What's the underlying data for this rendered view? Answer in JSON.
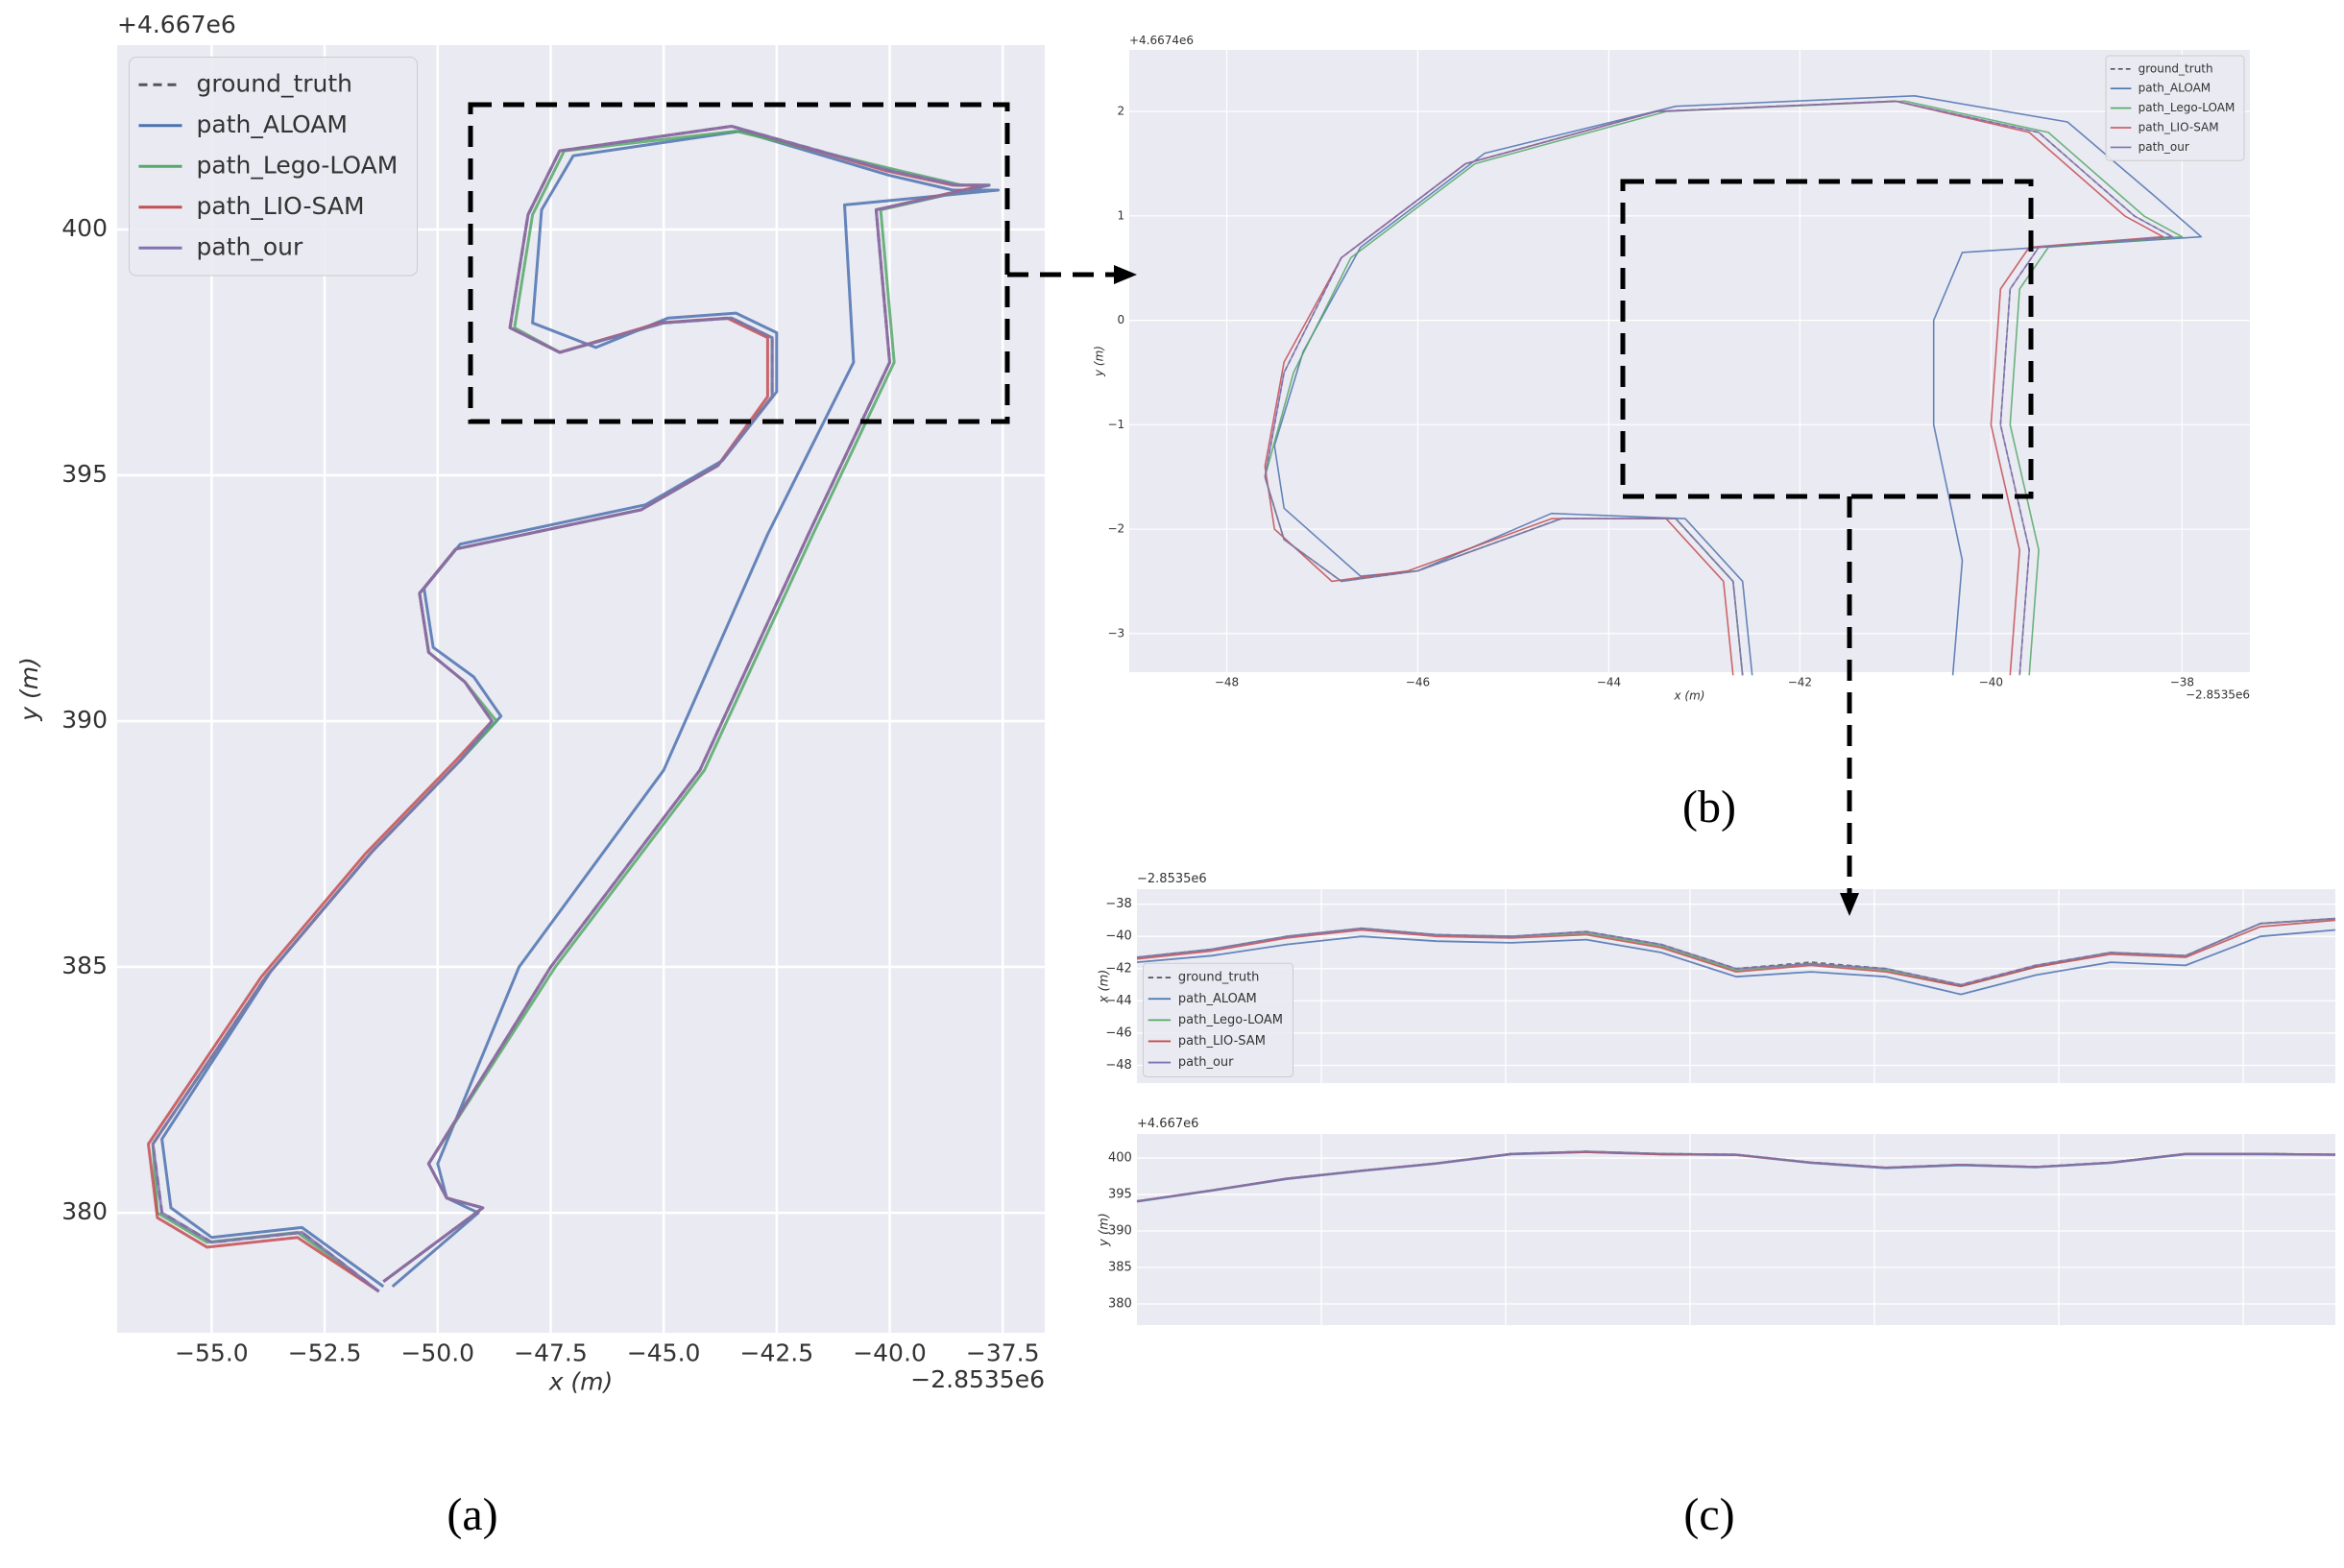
{
  "panel_labels": [
    "(a)",
    "(b)",
    "(c)"
  ],
  "chart_data": [
    {
      "type": "line",
      "xlabel": "x (m)",
      "ylabel": "y (m)",
      "x_offset": "−2.8535e6",
      "y_offset": "+4.667e6",
      "xlim": [
        -57.09,
        -36.57
      ],
      "ylim": [
        377.56,
        403.75
      ],
      "xticks": [
        {
          "value": -55,
          "label": "−55.0"
        },
        {
          "value": -52.5,
          "label": "−52.5"
        },
        {
          "value": -50,
          "label": "−50.0"
        },
        {
          "value": -47.5,
          "label": "−47.5"
        },
        {
          "value": -45,
          "label": "−45.0"
        },
        {
          "value": -42.5,
          "label": "−42.5"
        },
        {
          "value": -40,
          "label": "−40.0"
        },
        {
          "value": -37.5,
          "label": "−37.5"
        }
      ],
      "yticks": [
        380,
        385,
        390,
        395,
        400
      ],
      "grid": true,
      "legend": "upper left",
      "series": [
        {
          "name": "ground_truth",
          "color": "#555555",
          "dashed": true,
          "x": [
            -51.3,
            -53,
            -55,
            -56.1,
            -56.3,
            -53.8,
            -51.5,
            -49.5,
            -48.8,
            -49.4,
            -50.2,
            -50.4,
            -49.6,
            -45.5,
            -43.8,
            -42.6,
            -42.6,
            -43.5,
            -45.0,
            -47.3,
            -48.4,
            -48.0,
            -47.3,
            -43.5,
            -40.0,
            -38.5,
            -37.8,
            -40.3,
            -40.0,
            -41.8,
            -44.2,
            -47.5,
            -50.2,
            -49.8,
            -49.0,
            -51.2
          ],
          "values": [
            378.4,
            379.6,
            379.4,
            380.0,
            381.4,
            384.8,
            387.3,
            389.2,
            390.0,
            390.8,
            391.4,
            392.6,
            393.5,
            394.3,
            395.2,
            396.6,
            397.8,
            398.2,
            398.1,
            397.5,
            398.0,
            400.3,
            401.6,
            402.1,
            401.2,
            400.9,
            400.9,
            400.4,
            397.3,
            393.8,
            389.0,
            385.0,
            381.0,
            380.3,
            380.1,
            378.6
          ]
        },
        {
          "name": "path_ALOAM",
          "color": "#4c72b0",
          "x": [
            -51.2,
            -53,
            -55,
            -55.9,
            -56.1,
            -53.7,
            -51.4,
            -49.4,
            -48.6,
            -49.2,
            -50.1,
            -50.3,
            -49.5,
            -45.4,
            -43.7,
            -42.5,
            -42.5,
            -43.4,
            -44.9,
            -46.5,
            -47.9,
            -47.7,
            -47.0,
            -43.3,
            -40.0,
            -38.6,
            -37.6,
            -41.0,
            -40.8,
            -42.7,
            -45.0,
            -48.2,
            -50.0,
            -49.8,
            -49.1,
            -51.0
          ],
          "values": [
            378.5,
            379.7,
            379.5,
            380.1,
            381.5,
            384.9,
            387.4,
            389.3,
            390.1,
            390.9,
            391.5,
            392.7,
            393.6,
            394.4,
            395.3,
            396.7,
            397.9,
            398.3,
            398.2,
            397.6,
            398.1,
            400.4,
            401.5,
            402.0,
            401.1,
            400.8,
            400.8,
            400.5,
            397.3,
            393.8,
            389.0,
            385.0,
            381.0,
            380.3,
            380.0,
            378.5
          ]
        },
        {
          "name": "path_Lego-LOAM",
          "color": "#55a868",
          "x": [
            -51.3,
            -53.1,
            -55.1,
            -56.2,
            -56.3,
            -53.8,
            -51.5,
            -49.5,
            -48.7,
            -49.4,
            -50.2,
            -50.4,
            -49.6,
            -45.5,
            -43.8,
            -42.6,
            -42.6,
            -43.5,
            -45.0,
            -47.3,
            -48.3,
            -47.9,
            -47.2,
            -43.4,
            -39.8,
            -38.4,
            -37.8,
            -40.2,
            -39.9,
            -41.7,
            -44.1,
            -47.4,
            -50.2,
            -49.8,
            -49.0,
            -51.2
          ],
          "values": [
            378.4,
            379.6,
            379.4,
            380.0,
            381.4,
            384.8,
            387.3,
            389.2,
            390.0,
            390.8,
            391.4,
            392.6,
            393.5,
            394.3,
            395.2,
            396.6,
            397.8,
            398.2,
            398.1,
            397.5,
            398.0,
            400.3,
            401.6,
            402.0,
            401.2,
            400.9,
            400.9,
            400.4,
            397.3,
            393.8,
            389.0,
            385.0,
            381.0,
            380.3,
            380.1,
            378.6
          ]
        },
        {
          "name": "path_LIO-SAM",
          "color": "#c44e52",
          "x": [
            -51.3,
            -53.1,
            -55.1,
            -56.2,
            -56.4,
            -53.9,
            -51.6,
            -49.6,
            -48.8,
            -49.4,
            -50.2,
            -50.4,
            -49.6,
            -45.5,
            -43.8,
            -42.7,
            -42.7,
            -43.6,
            -45.1,
            -47.3,
            -48.4,
            -48.0,
            -47.3,
            -43.5,
            -40.1,
            -38.6,
            -37.9,
            -40.3,
            -40.0,
            -41.8,
            -44.2,
            -47.5,
            -50.2,
            -49.8,
            -49.0,
            -51.2
          ],
          "values": [
            378.4,
            379.5,
            379.3,
            379.9,
            381.4,
            384.8,
            387.3,
            389.2,
            390.0,
            390.8,
            391.4,
            392.6,
            393.5,
            394.3,
            395.2,
            396.6,
            397.8,
            398.2,
            398.1,
            397.5,
            398.0,
            400.3,
            401.6,
            402.1,
            401.2,
            400.9,
            400.9,
            400.4,
            397.3,
            393.8,
            389.0,
            385.0,
            381.0,
            380.3,
            380.1,
            378.6
          ]
        },
        {
          "name": "path_our",
          "color": "#8172b2",
          "x": [
            -51.3,
            -53,
            -55,
            -56.1,
            -56.3,
            -53.8,
            -51.5,
            -49.5,
            -48.8,
            -49.4,
            -50.2,
            -50.4,
            -49.6,
            -45.5,
            -43.8,
            -42.6,
            -42.6,
            -43.5,
            -45.0,
            -47.3,
            -48.4,
            -48.0,
            -47.3,
            -43.5,
            -40.0,
            -38.5,
            -37.8,
            -40.3,
            -40.0,
            -41.8,
            -44.2,
            -47.5,
            -50.2,
            -49.8,
            -49.0,
            -51.2
          ],
          "values": [
            378.4,
            379.6,
            379.4,
            380.0,
            381.4,
            384.8,
            387.3,
            389.2,
            390.0,
            390.8,
            391.4,
            392.6,
            393.5,
            394.3,
            395.2,
            396.6,
            397.8,
            398.2,
            398.1,
            397.5,
            398.0,
            400.3,
            401.6,
            402.1,
            401.2,
            400.9,
            400.9,
            400.4,
            397.3,
            393.8,
            389.0,
            385.0,
            381.0,
            380.3,
            380.1,
            378.6
          ]
        }
      ]
    },
    {
      "type": "line",
      "xlabel": "x (m)",
      "ylabel": "y (m)",
      "x_offset": "−2.8535e6",
      "y_offset": "+4.6674e6",
      "xlim": [
        -49.02,
        -37.29
      ],
      "ylim": [
        -3.37,
        2.59
      ],
      "xticks": [
        {
          "value": -48,
          "label": "−48"
        },
        {
          "value": -46,
          "label": "−46"
        },
        {
          "value": -44,
          "label": "−44"
        },
        {
          "value": -42,
          "label": "−42"
        },
        {
          "value": -40,
          "label": "−40"
        },
        {
          "value": -38,
          "label": "−38"
        }
      ],
      "yticks": [
        {
          "value": -3,
          "label": "−3"
        },
        {
          "value": -2,
          "label": "−2"
        },
        {
          "value": -1,
          "label": "−1"
        },
        0,
        1,
        2
      ],
      "grid": true,
      "legend": "upper right",
      "series": [
        {
          "name": "ground_truth",
          "color": "#555555",
          "dashed": true,
          "x": [
            -42.6,
            -42.7,
            -43.3,
            -44.5,
            -46.0,
            -46.8,
            -47.4,
            -47.6,
            -47.4,
            -46.8,
            -45.5,
            -43.5,
            -41.0,
            -39.5,
            -38.5,
            -38.1,
            -39.5,
            -39.8,
            -39.9,
            -39.6,
            -39.7
          ],
          "values": [
            -3.4,
            -2.5,
            -1.9,
            -1.9,
            -2.4,
            -2.5,
            -2.1,
            -1.5,
            -0.5,
            0.6,
            1.5,
            2.0,
            2.1,
            1.8,
            1.0,
            0.8,
            0.7,
            0.3,
            -1.0,
            -2.2,
            -3.4
          ]
        },
        {
          "name": "path_ALOAM",
          "color": "#4c72b0",
          "x": [
            -42.5,
            -42.6,
            -43.2,
            -44.6,
            -46.0,
            -46.6,
            -47.4,
            -47.5,
            -47.2,
            -46.6,
            -45.3,
            -43.3,
            -40.8,
            -39.2,
            -38.3,
            -37.8,
            -40.3,
            -40.6,
            -40.6,
            -40.3,
            -40.4
          ],
          "values": [
            -3.4,
            -2.5,
            -1.9,
            -1.85,
            -2.4,
            -2.45,
            -1.8,
            -1.2,
            -0.3,
            0.7,
            1.6,
            2.05,
            2.15,
            1.9,
            1.2,
            0.8,
            0.65,
            0.0,
            -1.0,
            -2.3,
            -3.4
          ]
        },
        {
          "name": "path_Lego-LOAM",
          "color": "#55a868",
          "x": [
            -42.6,
            -42.7,
            -43.3,
            -44.5,
            -46.0,
            -46.8,
            -47.4,
            -47.6,
            -47.3,
            -46.7,
            -45.4,
            -43.4,
            -40.9,
            -39.4,
            -38.4,
            -38.0,
            -39.4,
            -39.7,
            -39.8,
            -39.5,
            -39.6
          ],
          "values": [
            -3.4,
            -2.5,
            -1.9,
            -1.9,
            -2.4,
            -2.5,
            -2.1,
            -1.5,
            -0.5,
            0.6,
            1.5,
            2.0,
            2.1,
            1.8,
            1.0,
            0.8,
            0.7,
            0.3,
            -1.0,
            -2.2,
            -3.4
          ]
        },
        {
          "name": "path_LIO-SAM",
          "color": "#c44e52",
          "x": [
            -42.7,
            -42.8,
            -43.4,
            -44.6,
            -46.1,
            -46.9,
            -47.5,
            -47.6,
            -47.4,
            -46.8,
            -45.5,
            -43.5,
            -41.0,
            -39.6,
            -38.6,
            -38.2,
            -39.6,
            -39.9,
            -40.0,
            -39.7,
            -39.8
          ],
          "values": [
            -3.4,
            -2.5,
            -1.9,
            -1.9,
            -2.4,
            -2.5,
            -2.0,
            -1.4,
            -0.4,
            0.6,
            1.5,
            2.0,
            2.1,
            1.8,
            1.0,
            0.8,
            0.7,
            0.3,
            -1.0,
            -2.2,
            -3.4
          ]
        },
        {
          "name": "path_our",
          "color": "#8172b2",
          "x": [
            -42.6,
            -42.7,
            -43.3,
            -44.5,
            -46.0,
            -46.8,
            -47.4,
            -47.6,
            -47.4,
            -46.8,
            -45.5,
            -43.5,
            -41.0,
            -39.5,
            -38.5,
            -38.1,
            -39.5,
            -39.8,
            -39.9,
            -39.6,
            -39.7
          ],
          "values": [
            -3.4,
            -2.5,
            -1.9,
            -1.9,
            -2.4,
            -2.5,
            -2.1,
            -1.5,
            -0.5,
            0.6,
            1.5,
            2.0,
            2.1,
            1.8,
            1.0,
            0.8,
            0.7,
            0.3,
            -1.0,
            -2.2,
            -3.4
          ]
        }
      ]
    },
    {
      "type": "line",
      "ylabel": "x (m)",
      "y_offset": "−2.8535e6",
      "ylim": [
        -49.1,
        -37.07
      ],
      "yticks": [
        {
          "value": -38,
          "label": "−38"
        },
        {
          "value": -40,
          "label": "−40"
        },
        {
          "value": -42,
          "label": "−42"
        },
        {
          "value": -44,
          "label": "−44"
        },
        {
          "value": -46,
          "label": "−46"
        },
        {
          "value": -48,
          "label": "−48"
        }
      ],
      "grid": true,
      "legend": "lower left",
      "series": [
        {
          "name": "ground_truth",
          "color": "#555555",
          "dashed": true,
          "values": [
            -41.3,
            -40.8,
            -40.0,
            -39.5,
            -39.9,
            -40.0,
            -39.7,
            -40.5,
            -42.0,
            -41.6,
            -42.0,
            -43.0,
            -41.8,
            -41.0,
            -41.2,
            -39.2,
            -38.9
          ]
        },
        {
          "name": "path_ALOAM",
          "color": "#4c72b0",
          "values": [
            -41.6,
            -41.2,
            -40.5,
            -40.0,
            -40.3,
            -40.4,
            -40.2,
            -41.0,
            -42.5,
            -42.2,
            -42.5,
            -43.6,
            -42.4,
            -41.6,
            -41.8,
            -40.0,
            -39.6
          ]
        },
        {
          "name": "path_Lego-LOAM",
          "color": "#55a868",
          "values": [
            -41.3,
            -40.8,
            -40.0,
            -39.5,
            -39.9,
            -40.0,
            -39.8,
            -40.6,
            -42.1,
            -41.7,
            -42.1,
            -43.1,
            -41.9,
            -41.0,
            -41.2,
            -39.2,
            -38.9
          ]
        },
        {
          "name": "path_LIO-SAM",
          "color": "#c44e52",
          "values": [
            -41.4,
            -40.9,
            -40.1,
            -39.6,
            -40.0,
            -40.1,
            -39.9,
            -40.7,
            -42.2,
            -41.8,
            -42.2,
            -43.1,
            -41.9,
            -41.1,
            -41.3,
            -39.4,
            -39.0
          ]
        },
        {
          "name": "path_our",
          "color": "#8172b2",
          "values": [
            -41.3,
            -40.8,
            -40.0,
            -39.5,
            -39.9,
            -40.0,
            -39.7,
            -40.5,
            -42.0,
            -41.7,
            -42.0,
            -43.0,
            -41.8,
            -41.0,
            -41.2,
            -39.2,
            -38.9
          ]
        }
      ]
    },
    {
      "type": "line",
      "ylabel": "y (m)",
      "y_offset": "+4.667e6",
      "ylim": [
        377.1,
        403.3
      ],
      "yticks": [
        380,
        385,
        390,
        395,
        400
      ],
      "grid": true,
      "series": [
        {
          "name": "ground_truth",
          "color": "#555555",
          "dashed": true,
          "values": [
            394.1,
            395.6,
            397.2,
            398.3,
            399.3,
            400.6,
            400.9,
            400.6,
            400.5,
            399.4,
            398.7,
            399.1,
            398.8,
            399.4,
            400.6,
            400.6,
            400.5
          ]
        },
        {
          "name": "path_ALOAM",
          "color": "#4c72b0",
          "values": [
            394.0,
            395.5,
            397.1,
            398.2,
            399.2,
            400.5,
            400.8,
            400.5,
            400.4,
            399.3,
            398.6,
            399.0,
            398.7,
            399.3,
            400.5,
            400.5,
            400.4
          ]
        },
        {
          "name": "path_Lego-LOAM",
          "color": "#55a868",
          "values": [
            394.1,
            395.6,
            397.2,
            398.3,
            399.3,
            400.6,
            400.9,
            400.6,
            400.5,
            399.4,
            398.7,
            399.1,
            398.8,
            399.4,
            400.6,
            400.6,
            400.5
          ]
        },
        {
          "name": "path_LIO-SAM",
          "color": "#c44e52",
          "values": [
            394.1,
            395.6,
            397.2,
            398.3,
            399.3,
            400.6,
            400.8,
            400.5,
            400.4,
            399.4,
            398.7,
            399.1,
            398.8,
            399.4,
            400.6,
            400.6,
            400.5
          ]
        },
        {
          "name": "path_our",
          "color": "#8172b2",
          "values": [
            394.1,
            395.6,
            397.2,
            398.3,
            399.3,
            400.6,
            400.9,
            400.6,
            400.5,
            399.4,
            398.7,
            399.1,
            398.8,
            399.4,
            400.6,
            400.6,
            400.5
          ]
        }
      ]
    }
  ]
}
